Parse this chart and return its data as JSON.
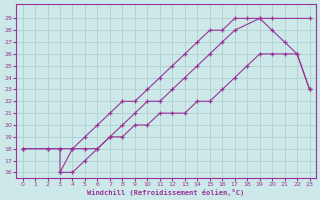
{
  "xlabel": "Windchill (Refroidissement éolien,°C)",
  "bg_color": "#cce8e8",
  "line_color": "#993399",
  "xlim": [
    -0.5,
    23.5
  ],
  "ylim": [
    15.5,
    30.2
  ],
  "xticks": [
    0,
    1,
    2,
    3,
    4,
    5,
    6,
    7,
    8,
    9,
    10,
    11,
    12,
    13,
    14,
    15,
    16,
    17,
    18,
    19,
    20,
    21,
    22,
    23
  ],
  "yticks": [
    16,
    17,
    18,
    19,
    20,
    21,
    22,
    23,
    24,
    25,
    26,
    27,
    28,
    29
  ],
  "curve1_x": [
    0,
    2,
    3,
    3,
    4,
    5,
    6,
    7,
    8,
    9,
    10,
    11,
    12,
    13,
    14,
    15,
    16,
    17,
    19,
    20,
    23
  ],
  "curve1_y": [
    18,
    18,
    18,
    16,
    16,
    17,
    18,
    19,
    20,
    21,
    22,
    22,
    23,
    24,
    25,
    26,
    27,
    28,
    29,
    29,
    29
  ],
  "curve2_x": [
    0,
    2,
    3,
    4,
    5,
    6,
    7,
    8,
    9,
    10,
    11,
    12,
    13,
    14,
    15,
    16,
    17,
    18,
    19,
    20,
    21,
    22,
    23
  ],
  "curve2_y": [
    18,
    18,
    18,
    18,
    19,
    20,
    21,
    22,
    22,
    23,
    24,
    25,
    26,
    27,
    28,
    28,
    29,
    29,
    29,
    28,
    27,
    26,
    23
  ],
  "curve3_x": [
    3,
    4,
    5,
    6,
    7,
    8,
    9,
    10,
    11,
    12,
    13,
    14,
    15,
    16,
    17,
    18,
    19,
    20,
    21,
    22,
    23
  ],
  "curve3_y": [
    16,
    18,
    18,
    18,
    19,
    19,
    20,
    20,
    21,
    21,
    21,
    22,
    22,
    23,
    24,
    25,
    26,
    26,
    26,
    26,
    23
  ]
}
